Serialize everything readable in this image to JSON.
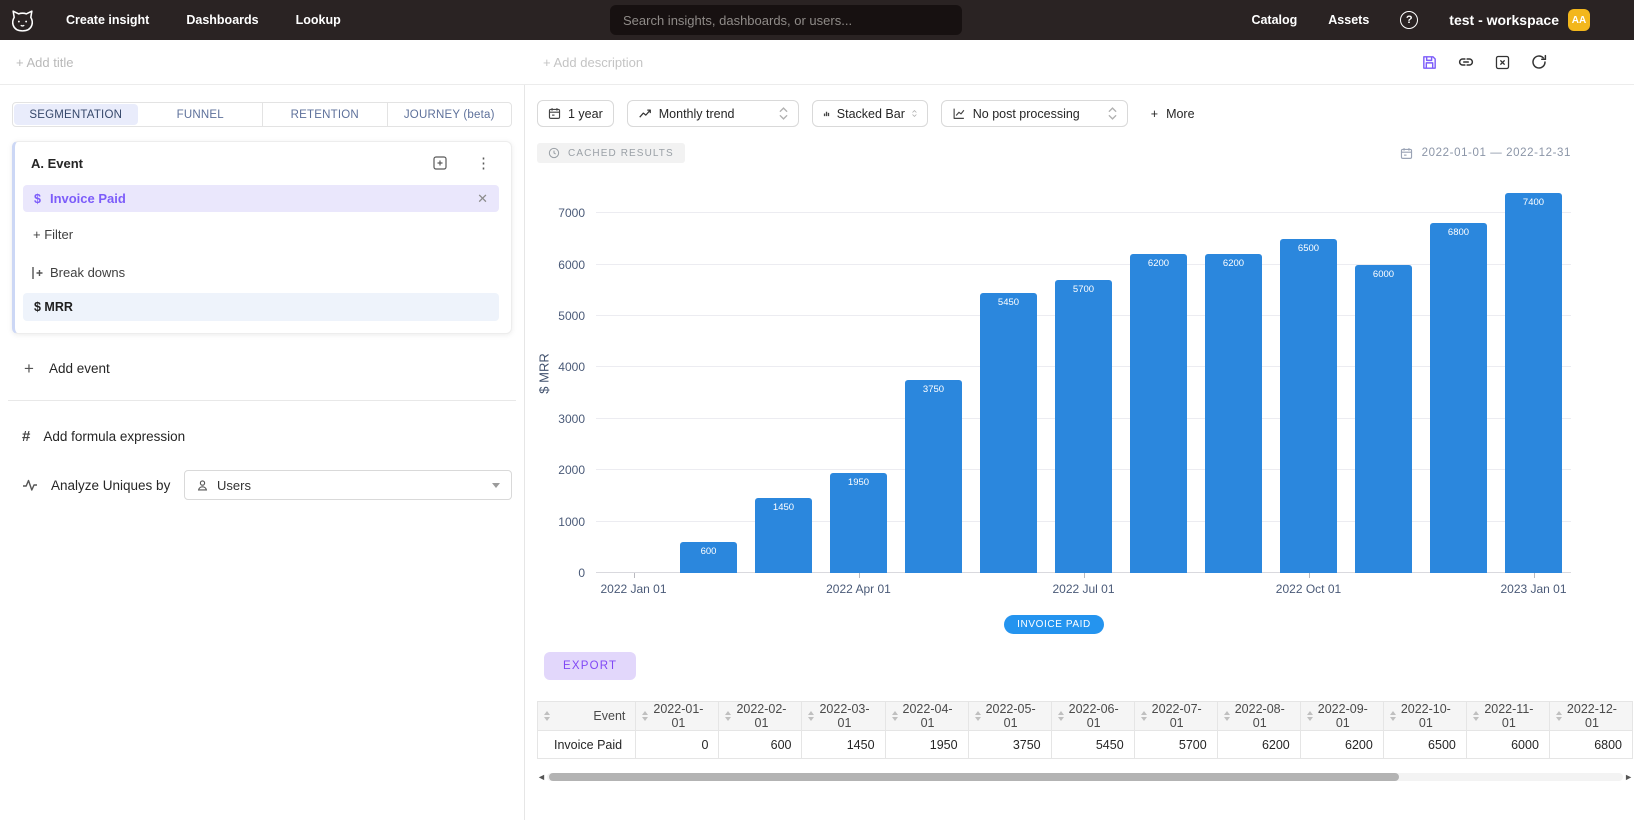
{
  "topnav": {
    "menu": [
      "Create insight",
      "Dashboards",
      "Lookup"
    ],
    "search_placeholder": "Search insights, dashboards, or users...",
    "right_menu": [
      "Catalog",
      "Assets"
    ],
    "help_glyph": "?",
    "workspace_name": "test - workspace",
    "avatar_initials": "AA"
  },
  "subheader": {
    "add_title": "+ Add title",
    "add_description": "+ Add description"
  },
  "sidebar": {
    "tabs": [
      "SEGMENTATION",
      "FUNNEL",
      "RETENTION",
      "JOURNEY (beta)"
    ],
    "active_tab": "SEGMENTATION",
    "event_card": {
      "title": "A. Event",
      "event_prefix": "$",
      "event_name": "Invoice Paid",
      "filter_label": "+ Filter",
      "breakdowns_label": "Break downs",
      "aggregation": "$ MRR",
      "close_glyph": "✕"
    },
    "add_event_label": "Add event",
    "add_formula_label": "Add formula expression",
    "analyze_label": "Analyze Uniques by",
    "analyze_value": "Users"
  },
  "toolbar": {
    "time_range": "1 year",
    "trend": "Monthly trend",
    "chart_type": "Stacked Bar",
    "post_processing": "No post processing",
    "more": "More",
    "more_plus": "+"
  },
  "results": {
    "cached_badge": "CACHED RESULTS",
    "date_range": "2022-01-01 — 2022-12-31",
    "legend_label": "INVOICE PAID",
    "export_label": "EXPORT"
  },
  "colors": {
    "bar": "#2b87dd",
    "legend_pill": "#2494ef",
    "accent_purple": "#7c5cfa",
    "avatar_amber": "#f3b71c"
  },
  "icons": [
    "cat-logo",
    "search",
    "help-circle",
    "save-floppy",
    "link-chain",
    "close-square",
    "reload",
    "plus-square",
    "kebab-menu",
    "breakdown-branch",
    "plus",
    "hash",
    "activity-pulse",
    "user-person",
    "caret-down",
    "calendar",
    "trend-line",
    "stacked-bar",
    "post-processing-chart",
    "up-down-stepper",
    "cache-clock",
    "sort-arrows",
    "scroll-arrows"
  ],
  "chart_data": {
    "type": "bar",
    "title": "",
    "xlabel": "",
    "ylabel": "$ MRR",
    "categories": [
      "2022-01-01",
      "2022-02-01",
      "2022-03-01",
      "2022-04-01",
      "2022-05-01",
      "2022-06-01",
      "2022-07-01",
      "2022-08-01",
      "2022-09-01",
      "2022-10-01",
      "2022-11-01",
      "2022-12-01",
      "2023-01-01"
    ],
    "series": [
      {
        "name": "Invoice Paid",
        "values": [
          0,
          600,
          1450,
          1950,
          3750,
          5450,
          5700,
          6200,
          6200,
          6500,
          6000,
          6800,
          7400
        ]
      }
    ],
    "y_ticks": [
      0,
      1000,
      2000,
      3000,
      4000,
      5000,
      6000,
      7000
    ],
    "ylim": [
      0,
      7780
    ],
    "x_ticks": [
      {
        "index": 0,
        "label": "2022 Jan 01"
      },
      {
        "index": 3,
        "label": "2022 Apr 01"
      },
      {
        "index": 6,
        "label": "2022 Jul 01"
      },
      {
        "index": 9,
        "label": "2022 Oct 01"
      },
      {
        "index": 12,
        "label": "2023 Jan 01"
      }
    ],
    "grid": true,
    "legend_position": "bottom",
    "show_value_labels": true
  },
  "table": {
    "columns": [
      "Event",
      "2022-01-01",
      "2022-02-01",
      "2022-03-01",
      "2022-04-01",
      "2022-05-01",
      "2022-06-01",
      "2022-07-01",
      "2022-08-01",
      "2022-09-01",
      "2022-10-01",
      "2022-11-01",
      "2022-12-01"
    ],
    "rows": [
      [
        "Invoice Paid",
        "0",
        "600",
        "1450",
        "1950",
        "3750",
        "5450",
        "5700",
        "6200",
        "6200",
        "6500",
        "6000",
        "6800"
      ]
    ]
  }
}
